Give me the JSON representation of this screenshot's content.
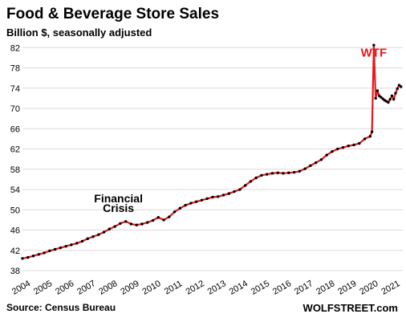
{
  "chart_data": {
    "type": "line",
    "title": "Food & Beverage Store Sales",
    "subtitle": "Billion $, seasonally adjusted",
    "xlabel": "",
    "ylabel": "",
    "x_tick_labels": [
      "2004",
      "2005",
      "2006",
      "2007",
      "2008",
      "2009",
      "2010",
      "2011",
      "2012",
      "2013",
      "2014",
      "2015",
      "2016",
      "2017",
      "2018",
      "2019",
      "2020",
      "2021"
    ],
    "y_tick_labels": [
      "38",
      "42",
      "46",
      "50",
      "54",
      "58",
      "62",
      "66",
      "70",
      "74",
      "78",
      "82"
    ],
    "ylim": [
      38,
      83
    ],
    "xlim": [
      "2004-01",
      "2021-07"
    ],
    "grid": "horizontal",
    "annotations": [
      {
        "text": "Financial",
        "x": "2008-06",
        "y": 51.5
      },
      {
        "text": "Crisis",
        "x": "2008-06",
        "y": 49.6
      },
      {
        "text": "WTF",
        "x": "2020-03",
        "y": 80.2
      }
    ],
    "source": "Source: Census Bureau",
    "brand": "WOLFSTREET.com",
    "line_color": "#e8191c",
    "marker_color": "#000000",
    "series": [
      {
        "points": [
          [
            "2004-01",
            40.4
          ],
          [
            "2004-04",
            40.6
          ],
          [
            "2004-07",
            40.9
          ],
          [
            "2004-10",
            41.2
          ],
          [
            "2005-01",
            41.5
          ],
          [
            "2005-04",
            41.9
          ],
          [
            "2005-07",
            42.2
          ],
          [
            "2005-10",
            42.5
          ],
          [
            "2006-01",
            42.8
          ],
          [
            "2006-04",
            43.1
          ],
          [
            "2006-07",
            43.4
          ],
          [
            "2006-10",
            43.8
          ],
          [
            "2007-01",
            44.3
          ],
          [
            "2007-04",
            44.7
          ],
          [
            "2007-07",
            45.1
          ],
          [
            "2007-10",
            45.6
          ],
          [
            "2008-01",
            46.2
          ],
          [
            "2008-04",
            46.7
          ],
          [
            "2008-07",
            47.3
          ],
          [
            "2008-10",
            47.7
          ],
          [
            "2009-01",
            47.2
          ],
          [
            "2009-04",
            47.0
          ],
          [
            "2009-07",
            47.2
          ],
          [
            "2009-10",
            47.5
          ],
          [
            "2010-01",
            47.9
          ],
          [
            "2010-04",
            48.5
          ],
          [
            "2010-07",
            48.0
          ],
          [
            "2010-10",
            48.6
          ],
          [
            "2011-01",
            49.6
          ],
          [
            "2011-04",
            50.3
          ],
          [
            "2011-07",
            50.9
          ],
          [
            "2011-10",
            51.3
          ],
          [
            "2012-01",
            51.6
          ],
          [
            "2012-04",
            51.9
          ],
          [
            "2012-07",
            52.2
          ],
          [
            "2012-10",
            52.5
          ],
          [
            "2013-01",
            52.6
          ],
          [
            "2013-04",
            52.9
          ],
          [
            "2013-07",
            53.2
          ],
          [
            "2013-10",
            53.6
          ],
          [
            "2014-01",
            54.0
          ],
          [
            "2014-04",
            54.8
          ],
          [
            "2014-07",
            55.6
          ],
          [
            "2014-10",
            56.3
          ],
          [
            "2015-01",
            56.8
          ],
          [
            "2015-04",
            57.0
          ],
          [
            "2015-07",
            57.2
          ],
          [
            "2015-10",
            57.3
          ],
          [
            "2016-01",
            57.2
          ],
          [
            "2016-04",
            57.3
          ],
          [
            "2016-07",
            57.4
          ],
          [
            "2016-10",
            57.6
          ],
          [
            "2017-01",
            58.1
          ],
          [
            "2017-04",
            58.7
          ],
          [
            "2017-07",
            59.3
          ],
          [
            "2017-10",
            59.9
          ],
          [
            "2018-01",
            60.8
          ],
          [
            "2018-04",
            61.5
          ],
          [
            "2018-07",
            62.0
          ],
          [
            "2018-10",
            62.3
          ],
          [
            "2019-01",
            62.6
          ],
          [
            "2019-04",
            62.8
          ],
          [
            "2019-07",
            63.1
          ],
          [
            "2019-10",
            64.0
          ],
          [
            "2020-01",
            64.5
          ],
          [
            "2020-02",
            65.4
          ],
          [
            "2020-03",
            82.5
          ],
          [
            "2020-04",
            72.0
          ],
          [
            "2020-05",
            73.5
          ],
          [
            "2020-06",
            72.5
          ],
          [
            "2020-07",
            72.2
          ],
          [
            "2020-08",
            71.9
          ],
          [
            "2020-09",
            71.6
          ],
          [
            "2020-10",
            71.4
          ],
          [
            "2020-11",
            71.2
          ],
          [
            "2020-12",
            71.8
          ],
          [
            "2021-01",
            72.5
          ],
          [
            "2021-02",
            71.8
          ],
          [
            "2021-03",
            73.0
          ],
          [
            "2021-04",
            73.9
          ],
          [
            "2021-05",
            74.6
          ],
          [
            "2021-06",
            74.3
          ]
        ]
      }
    ]
  }
}
